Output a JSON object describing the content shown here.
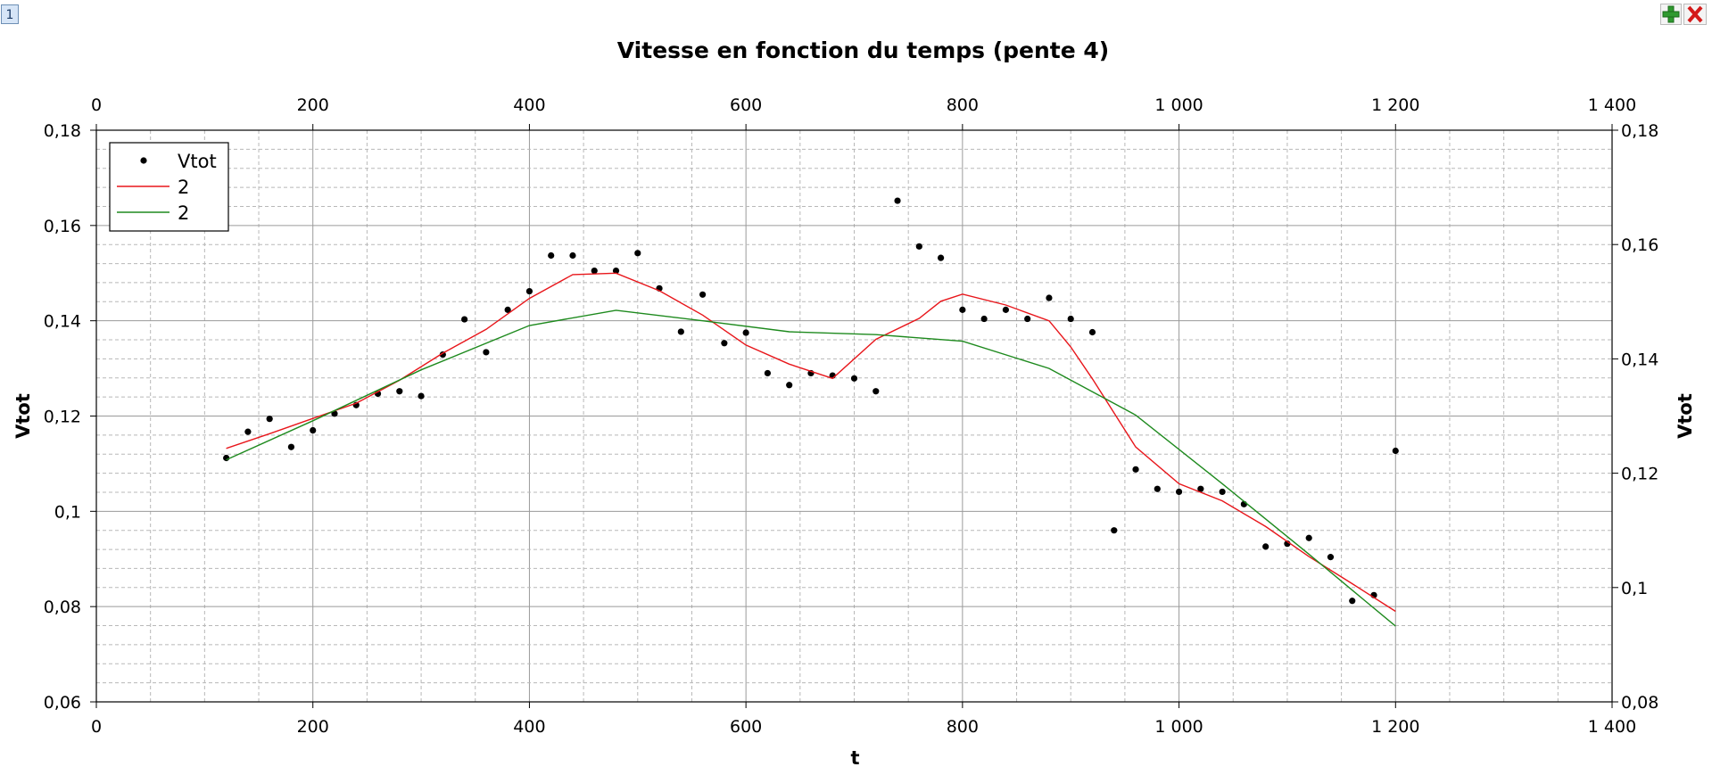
{
  "window": {
    "tab_label": "1",
    "add_icon": "plus-icon",
    "close_icon": "close-icon"
  },
  "chart_data": {
    "type": "scatter",
    "title": "Vitesse en fonction du temps (pente 4)",
    "xlabel": "t",
    "ylabel_left": "Vtot",
    "ylabel_right": "Vtot",
    "xlim": [
      0,
      1400
    ],
    "ylim_left": [
      0.06,
      0.18
    ],
    "ylim_right": [
      0.08,
      0.18
    ],
    "x_ticks": [
      0,
      200,
      400,
      600,
      800,
      1000,
      1200,
      1400
    ],
    "x_tick_labels": [
      "0",
      "200",
      "400",
      "600",
      "800",
      "1 000",
      "1 200",
      "1 400"
    ],
    "y_ticks_left": [
      0.06,
      0.08,
      0.1,
      0.12,
      0.14,
      0.16,
      0.18
    ],
    "y_tick_labels_left": [
      "0,06",
      "0,08",
      "0,1",
      "0,12",
      "0,14",
      "0,16",
      "0,18"
    ],
    "y_ticks_right": [
      0.08,
      0.1,
      0.12,
      0.14,
      0.16,
      0.18
    ],
    "y_tick_labels_right": [
      "0,08",
      "0,1",
      "0,12",
      "0,14",
      "0,16",
      "0,18"
    ],
    "grid": true,
    "legend_position": "top-left",
    "series": [
      {
        "name": "Vtot",
        "kind": "points",
        "color": "#000000",
        "x": [
          120,
          140,
          160,
          180,
          200,
          220,
          240,
          260,
          280,
          300,
          320,
          340,
          360,
          380,
          400,
          420,
          440,
          460,
          480,
          500,
          520,
          540,
          560,
          580,
          600,
          620,
          640,
          660,
          680,
          700,
          720,
          740,
          760,
          780,
          800,
          820,
          840,
          860,
          880,
          900,
          920,
          940,
          960,
          980,
          1000,
          1020,
          1040,
          1060,
          1080,
          1100,
          1120,
          1140,
          1160,
          1180,
          1200
        ],
        "y": [
          0.1112,
          0.1167,
          0.1194,
          0.1135,
          0.117,
          0.1205,
          0.1223,
          0.1247,
          0.1252,
          0.1242,
          0.1329,
          0.1403,
          0.1334,
          0.1423,
          0.1462,
          0.1537,
          0.1537,
          0.1505,
          0.1505,
          0.1542,
          0.1468,
          0.1377,
          0.1455,
          0.1353,
          0.1375,
          0.129,
          0.1265,
          0.129,
          0.1285,
          0.1279,
          0.1252,
          0.1652,
          0.1556,
          0.1532,
          0.1423,
          0.1404,
          0.1423,
          0.1404,
          0.1448,
          0.1404,
          0.1376,
          0.096,
          0.1088,
          0.1047,
          0.1041,
          0.1047,
          0.1041,
          0.1015,
          0.0926,
          0.0932,
          0.0944,
          0.0904,
          0.0812,
          0.0824,
          0.1127
        ]
      },
      {
        "name": "2",
        "kind": "line",
        "color": "#e8161b",
        "x": [
          120,
          160,
          200,
          240,
          280,
          320,
          360,
          400,
          440,
          480,
          520,
          560,
          600,
          640,
          680,
          720,
          760,
          780,
          800,
          840,
          880,
          900,
          920,
          960,
          1000,
          1040,
          1080,
          1120,
          1160,
          1200
        ],
        "y": [
          0.1132,
          0.1163,
          0.1195,
          0.1227,
          0.1275,
          0.1332,
          0.1382,
          0.1447,
          0.1497,
          0.15,
          0.1463,
          0.1412,
          0.1349,
          0.1309,
          0.1279,
          0.1361,
          0.1405,
          0.1441,
          0.1456,
          0.1433,
          0.14,
          0.1345,
          0.1278,
          0.1135,
          0.1058,
          0.1022,
          0.0968,
          0.0905,
          0.0848,
          0.079
        ]
      },
      {
        "name": "2",
        "kind": "line",
        "color": "#1e8a1e",
        "x": [
          120,
          200,
          300,
          400,
          480,
          560,
          640,
          720,
          800,
          880,
          960,
          1040,
          1120,
          1200
        ],
        "y": [
          0.1108,
          0.119,
          0.1297,
          0.139,
          0.1422,
          0.14,
          0.1377,
          0.1371,
          0.1357,
          0.13,
          0.1202,
          0.1058,
          0.091,
          0.0759
        ]
      }
    ]
  }
}
